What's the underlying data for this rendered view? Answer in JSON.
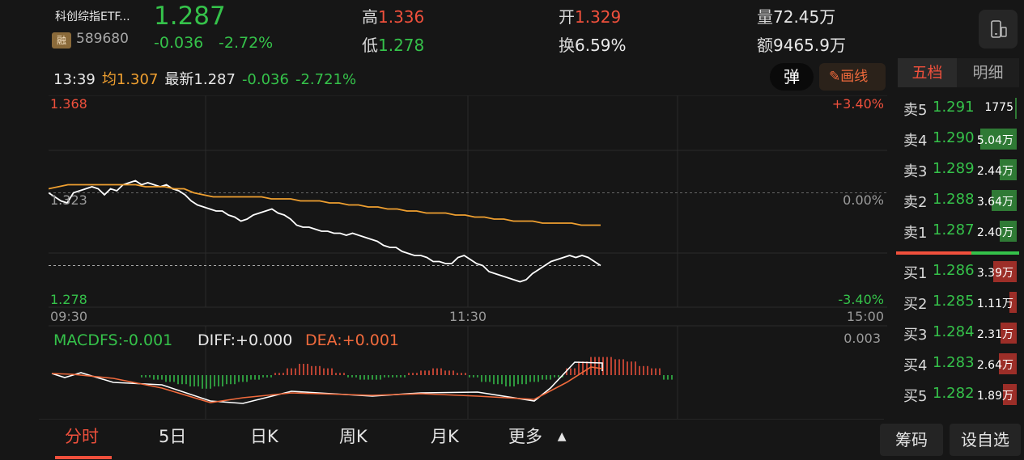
{
  "header": {
    "name": "科创综指ETF...",
    "tag": "融",
    "code": "589680",
    "price": "1.287",
    "change": "-0.036",
    "change_pct": "-2.72%",
    "high_label": "高",
    "high": "1.336",
    "low_label": "低",
    "low": "1.278",
    "open_label": "开",
    "open": "1.329",
    "turnover_label": "换",
    "turnover": "6.59%",
    "volume_label": "量",
    "volume": "72.45万",
    "amount_label": "额",
    "amount": "9465.9万"
  },
  "info_row": {
    "time": "13:39",
    "avg_label": "均",
    "avg": "1.307",
    "latest_label": "最新",
    "latest": "1.287",
    "change": "-0.036",
    "change_pct": "-2.721%"
  },
  "buttons": {
    "popup": "弹",
    "draw": "画线"
  },
  "chart": {
    "y_top": "1.368",
    "y_mid": "1.323",
    "y_bot": "1.278",
    "pct_top": "+3.40%",
    "pct_mid": "0.00%",
    "pct_bot": "-3.40%",
    "x_start": "09:30",
    "x_mid": "11:30",
    "x_end": "15:00",
    "macd_label": "MACDFS:-0.001",
    "diff_label": "DIFF:+0.000",
    "dea_label": "DEA:+0.001",
    "macd_scale": "0.003"
  },
  "chart_data": {
    "type": "line",
    "title": "",
    "xlabel": "",
    "ylabel": "",
    "x_ticks": [
      "09:30",
      "11:30",
      "15:00"
    ],
    "ylim": [
      1.278,
      1.368
    ],
    "prev_close": 1.323,
    "series": [
      {
        "name": "",
        "color": "#ffffff",
        "values": [
          1.323,
          1.321,
          1.319,
          1.318,
          1.323,
          1.324,
          1.325,
          1.326,
          1.325,
          1.322,
          1.325,
          1.324,
          1.327,
          1.328,
          1.329,
          1.327,
          1.328,
          1.327,
          1.326,
          1.327,
          1.325,
          1.324,
          1.322,
          1.319,
          1.317,
          1.316,
          1.315,
          1.314,
          1.314,
          1.312,
          1.311,
          1.309,
          1.31,
          1.312,
          1.313,
          1.314,
          1.315,
          1.313,
          1.312,
          1.31,
          1.307,
          1.306,
          1.306,
          1.305,
          1.304,
          1.304,
          1.303,
          1.303,
          1.302,
          1.303,
          1.302,
          1.301,
          1.3,
          1.299,
          1.297,
          1.296,
          1.296,
          1.294,
          1.293,
          1.292,
          1.292,
          1.291,
          1.289,
          1.289,
          1.288,
          1.288,
          1.291,
          1.292,
          1.29,
          1.288,
          1.287,
          1.284,
          1.283,
          1.282,
          1.281,
          1.28,
          1.279,
          1.28,
          1.283,
          1.285,
          1.287,
          1.289,
          1.29,
          1.291,
          1.292,
          1.291,
          1.292,
          1.291,
          1.289,
          1.287
        ]
      },
      {
        "name": "",
        "color": "#f0a030",
        "values": [
          1.325,
          1.326,
          1.327,
          1.327,
          1.327,
          1.327,
          1.327,
          1.327,
          1.327,
          1.327,
          1.326,
          1.326,
          1.326,
          1.325,
          1.325,
          1.323,
          1.322,
          1.321,
          1.321,
          1.321,
          1.321,
          1.321,
          1.321,
          1.32,
          1.32,
          1.32,
          1.319,
          1.319,
          1.319,
          1.318,
          1.318,
          1.317,
          1.317,
          1.316,
          1.316,
          1.315,
          1.315,
          1.314,
          1.314,
          1.313,
          1.313,
          1.313,
          1.312,
          1.312,
          1.311,
          1.311,
          1.31,
          1.31,
          1.309,
          1.309,
          1.309,
          1.308,
          1.308,
          1.308,
          1.308,
          1.307,
          1.307,
          1.307
        ]
      }
    ],
    "macd": {
      "diff_color": "#ffffff",
      "dea_color": "#f06a3c",
      "bars": [
        0.0,
        -0.1,
        -0.2,
        -0.3,
        -0.4,
        -0.5,
        -0.6,
        -0.5,
        -0.4,
        -0.3,
        -0.2,
        -0.1,
        0.1,
        0.3,
        0.5,
        0.4,
        0.3,
        0.1,
        -0.1,
        -0.2,
        -0.2,
        -0.1,
        -0.1,
        0.1,
        0.2,
        0.3,
        0.2,
        0.1,
        -0.1,
        -0.3,
        -0.4,
        -0.5,
        -0.4,
        -0.3,
        -0.2,
        -0.1,
        0.3,
        0.6,
        0.8,
        0.8,
        0.7,
        0.6,
        0.4,
        0.3,
        -0.2
      ]
    }
  },
  "tabs": [
    "分时",
    "5日",
    "日K",
    "周K",
    "月K",
    "更多"
  ],
  "side_buttons": [
    "筹码",
    "设自选"
  ],
  "order_book": {
    "tab_active": "五档",
    "tab_other": "明细",
    "asks": [
      {
        "label": "卖5",
        "price": "1.291",
        "volume": "1775",
        "level": 0.02
      },
      {
        "label": "卖4",
        "price": "1.290",
        "volume": "5.04万",
        "level": 0.9
      },
      {
        "label": "卖3",
        "price": "1.289",
        "volume": "2.44万",
        "level": 0.42
      },
      {
        "label": "卖2",
        "price": "1.288",
        "volume": "3.64万",
        "level": 0.62
      },
      {
        "label": "卖1",
        "price": "1.287",
        "volume": "2.40万",
        "level": 0.42
      }
    ],
    "bids": [
      {
        "label": "买1",
        "price": "1.286",
        "volume": "3.39万",
        "level": 0.58
      },
      {
        "label": "买2",
        "price": "1.285",
        "volume": "1.11万",
        "level": 0.18
      },
      {
        "label": "买3",
        "price": "1.284",
        "volume": "2.31万",
        "level": 0.4
      },
      {
        "label": "买4",
        "price": "1.283",
        "volume": "2.64万",
        "level": 0.44
      },
      {
        "label": "买5",
        "price": "1.282",
        "volume": "1.89万",
        "level": 0.33
      }
    ]
  }
}
